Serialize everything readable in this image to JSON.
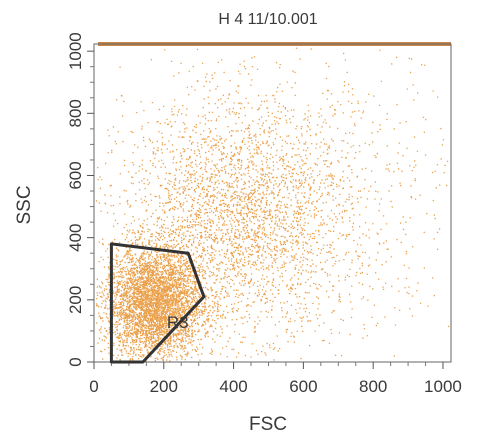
{
  "chart_data": {
    "type": "scatter",
    "title": "H 4 11/10.001",
    "xlabel": "FSC",
    "ylabel": "SSC",
    "xlim": [
      0,
      1023
    ],
    "ylim": [
      0,
      1023
    ],
    "x_ticks": [
      0,
      200,
      400,
      600,
      800,
      1000
    ],
    "y_ticks": [
      0,
      200,
      400,
      600,
      800,
      1000
    ],
    "x_tick_labels": [
      "0",
      "200",
      "400",
      "600",
      "800",
      "1000"
    ],
    "y_tick_labels": [
      "0",
      "200",
      "400",
      "600",
      "800",
      "1000"
    ],
    "grid": false,
    "point_color": "#e8902c",
    "gate_color": "#333333",
    "top_saturation_color": "#c9864a",
    "gate": {
      "label": "R3",
      "vertices": [
        [
          50,
          0
        ],
        [
          50,
          380
        ],
        [
          270,
          350
        ],
        [
          315,
          210
        ],
        [
          140,
          0
        ]
      ],
      "label_position": [
        240,
        110
      ]
    },
    "populations": [
      {
        "name_hidden": "",
        "count": 4200,
        "center": [
          170,
          190
        ],
        "spread": [
          70,
          90
        ]
      },
      {
        "name_hidden": "",
        "count": 2600,
        "center": [
          400,
          460
        ],
        "spread": [
          160,
          180
        ]
      },
      {
        "name_hidden": "",
        "count": 1100,
        "center": [
          560,
          520
        ],
        "spread": [
          260,
          260
        ]
      }
    ]
  }
}
